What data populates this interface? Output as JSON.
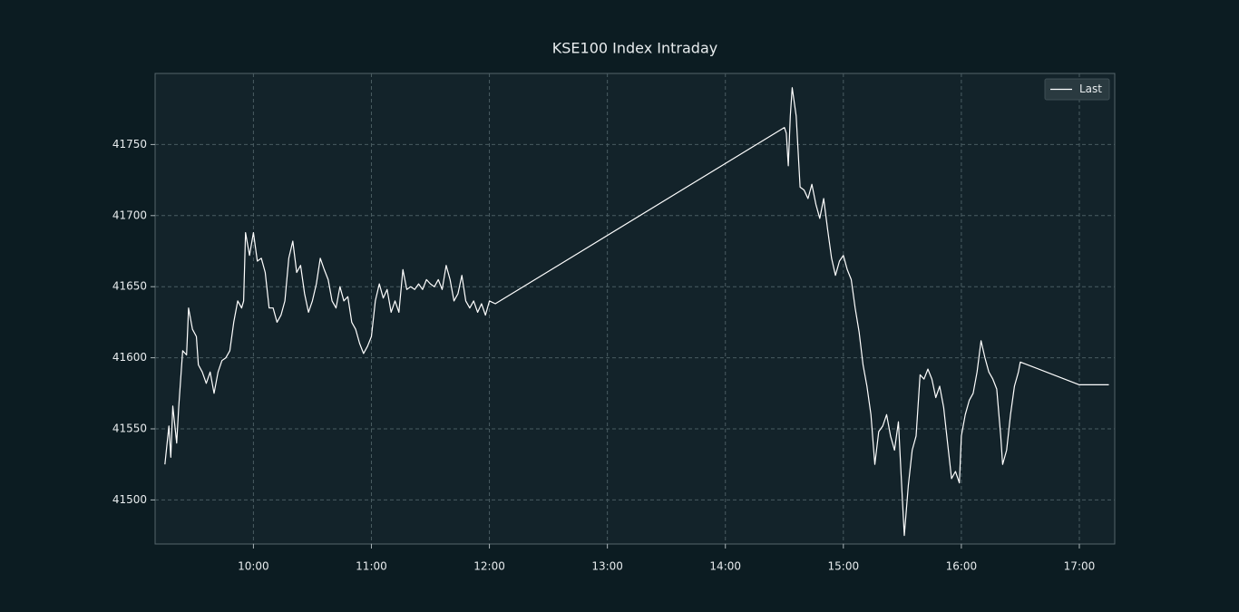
{
  "chart_data": {
    "type": "line",
    "title": "KSE100 Index Intraday",
    "legend": "upper right",
    "grid": true,
    "xlim": [
      "09:10",
      "17:18"
    ],
    "xticks": [
      "10:00",
      "11:00",
      "12:00",
      "13:00",
      "14:00",
      "15:00",
      "16:00",
      "17:00"
    ],
    "ylim": [
      41469,
      41800
    ],
    "yticks": [
      41500,
      41550,
      41600,
      41650,
      41700,
      41750
    ],
    "x": [
      "09:15",
      "09:17",
      "09:18",
      "09:19",
      "09:21",
      "09:22",
      "09:24",
      "09:26",
      "09:27",
      "09:29",
      "09:31",
      "09:32",
      "09:34",
      "09:36",
      "09:38",
      "09:40",
      "09:42",
      "09:44",
      "09:46",
      "09:48",
      "09:50",
      "09:52",
      "09:54",
      "09:55",
      "09:56",
      "09:58",
      "10:00",
      "10:02",
      "10:04",
      "10:06",
      "10:08",
      "10:10",
      "10:12",
      "10:14",
      "10:16",
      "10:18",
      "10:20",
      "10:22",
      "10:24",
      "10:26",
      "10:28",
      "10:30",
      "10:32",
      "10:34",
      "10:36",
      "10:38",
      "10:40",
      "10:42",
      "10:44",
      "10:46",
      "10:48",
      "10:50",
      "10:52",
      "10:54",
      "10:56",
      "10:58",
      "11:00",
      "11:02",
      "11:04",
      "11:06",
      "11:08",
      "11:10",
      "11:12",
      "11:14",
      "11:16",
      "11:18",
      "11:20",
      "11:22",
      "11:24",
      "11:26",
      "11:28",
      "11:30",
      "11:32",
      "11:34",
      "11:36",
      "11:38",
      "11:40",
      "11:42",
      "11:44",
      "11:46",
      "11:48",
      "11:50",
      "11:52",
      "11:54",
      "11:56",
      "11:58",
      "12:00",
      "12:03",
      "14:30",
      "14:31",
      "14:32",
      "14:33",
      "14:34",
      "14:36",
      "14:38",
      "14:40",
      "14:42",
      "14:44",
      "14:46",
      "14:48",
      "14:50",
      "14:52",
      "14:54",
      "14:56",
      "14:58",
      "15:00",
      "15:02",
      "15:04",
      "15:06",
      "15:08",
      "15:10",
      "15:12",
      "15:14",
      "15:16",
      "15:18",
      "15:20",
      "15:22",
      "15:24",
      "15:26",
      "15:28",
      "15:30",
      "15:31",
      "15:33",
      "15:35",
      "15:37",
      "15:39",
      "15:41",
      "15:43",
      "15:45",
      "15:47",
      "15:49",
      "15:51",
      "15:53",
      "15:55",
      "15:57",
      "15:59",
      "16:00",
      "16:02",
      "16:04",
      "16:06",
      "16:08",
      "16:10",
      "16:12",
      "16:14",
      "16:16",
      "16:18",
      "16:20",
      "16:21",
      "16:23",
      "16:25",
      "16:27",
      "16:29",
      "16:30",
      "17:00",
      "17:15"
    ],
    "series": [
      {
        "name": "Last",
        "color": "#ffffff",
        "values": [
          41525,
          41552,
          41530,
          41566,
          41540,
          41565,
          41605,
          41602,
          41635,
          41620,
          41615,
          41595,
          41590,
          41582,
          41590,
          41575,
          41590,
          41598,
          41600,
          41605,
          41625,
          41640,
          41635,
          41640,
          41688,
          41672,
          41688,
          41668,
          41670,
          41660,
          41635,
          41635,
          41625,
          41630,
          41640,
          41670,
          41682,
          41660,
          41665,
          41645,
          41632,
          41640,
          41652,
          41670,
          41662,
          41655,
          41640,
          41635,
          41650,
          41640,
          41643,
          41625,
          41620,
          41610,
          41603,
          41608,
          41615,
          41640,
          41652,
          41642,
          41648,
          41632,
          41640,
          41632,
          41662,
          41648,
          41650,
          41648,
          41652,
          41648,
          41655,
          41652,
          41650,
          41655,
          41648,
          41665,
          41655,
          41640,
          41645,
          41658,
          41640,
          41635,
          41640,
          41632,
          41638,
          41630,
          41640,
          41638,
          41762,
          41758,
          41735,
          41770,
          41790,
          41770,
          41720,
          41718,
          41712,
          41722,
          41708,
          41698,
          41712,
          41690,
          41670,
          41658,
          41668,
          41672,
          41662,
          41655,
          41635,
          41618,
          41595,
          41580,
          41560,
          41525,
          41548,
          41552,
          41560,
          41545,
          41535,
          41555,
          41500,
          41475,
          41510,
          41535,
          41545,
          41588,
          41585,
          41592,
          41585,
          41572,
          41580,
          41565,
          41540,
          41515,
          41520,
          41512,
          41545,
          41560,
          41570,
          41575,
          41590,
          41612,
          41600,
          41590,
          41585,
          41578,
          41545,
          41525,
          41535,
          41560,
          41580,
          41590,
          41597,
          41581,
          41581
        ]
      }
    ]
  }
}
